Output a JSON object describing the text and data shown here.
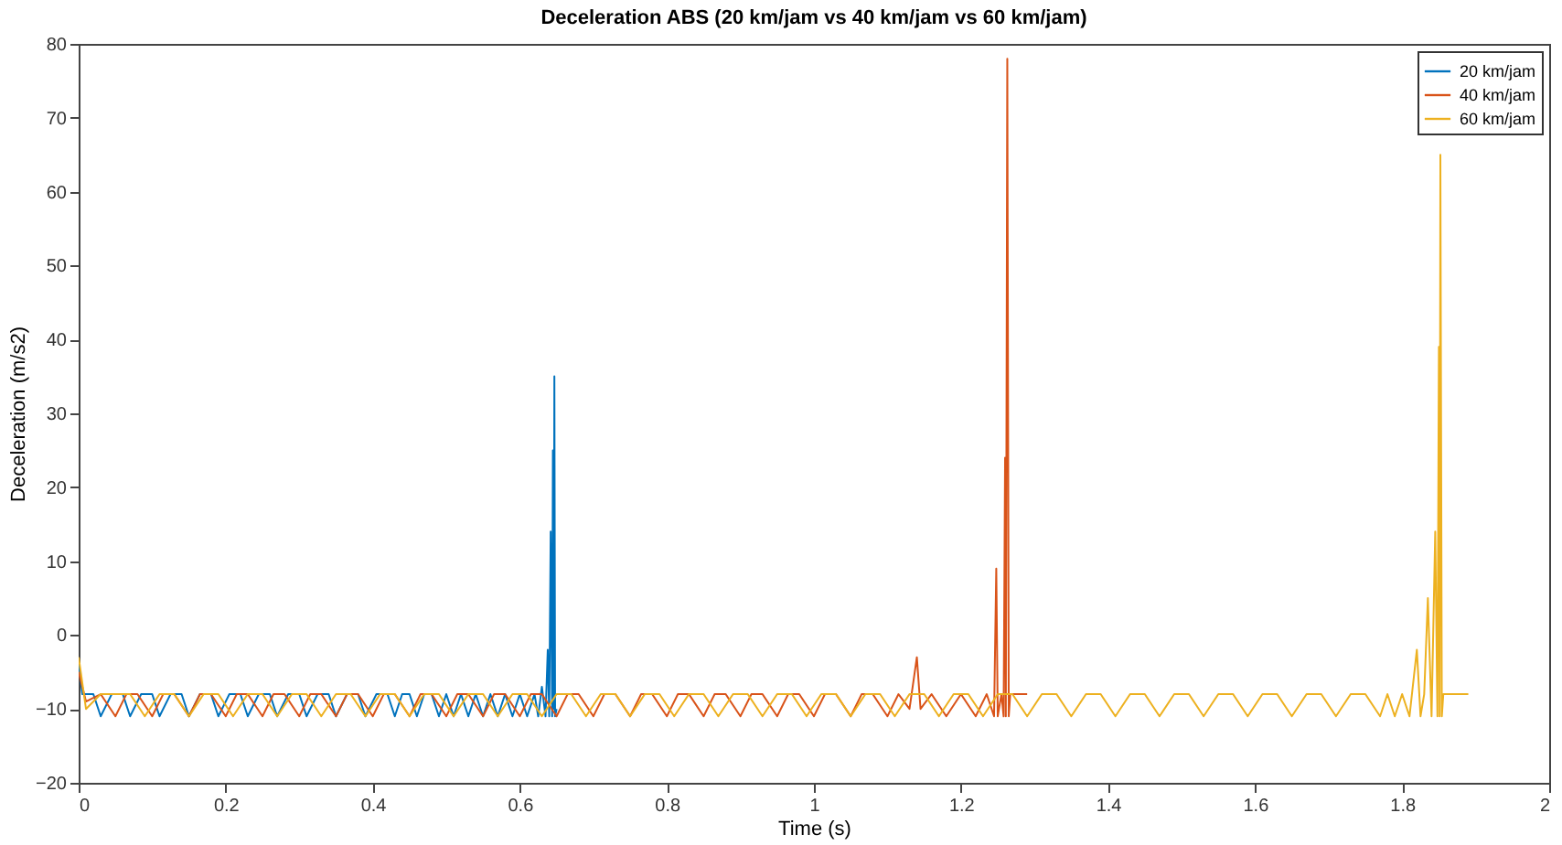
{
  "chart_data": {
    "type": "line",
    "title": "Deceleration ABS (20 km/jam vs 40 km/jam vs 60 km/jam)",
    "xlabel": "Time (s)",
    "ylabel": "Deceleration (m/s2)",
    "xlim": [
      0,
      2
    ],
    "xticks": [
      0,
      0.2,
      0.4,
      0.6,
      0.8,
      1,
      1.2,
      1.4,
      1.6,
      1.8,
      2
    ],
    "ylim": [
      -20,
      80
    ],
    "yticks": [
      -20,
      -10,
      0,
      10,
      20,
      30,
      40,
      50,
      60,
      70,
      80
    ],
    "grid": false,
    "legend": "top right",
    "marker": "none",
    "line_style": "solid",
    "series": [
      {
        "name": "20 km/jam",
        "color": "#0072bd",
        "x": [
          0,
          0.005,
          0.02,
          0.03,
          0.045,
          0.06,
          0.07,
          0.085,
          0.1,
          0.11,
          0.125,
          0.14,
          0.15,
          0.165,
          0.18,
          0.19,
          0.205,
          0.22,
          0.23,
          0.245,
          0.26,
          0.27,
          0.285,
          0.3,
          0.31,
          0.325,
          0.34,
          0.35,
          0.365,
          0.38,
          0.39,
          0.405,
          0.42,
          0.43,
          0.44,
          0.45,
          0.46,
          0.47,
          0.48,
          0.49,
          0.5,
          0.51,
          0.52,
          0.53,
          0.54,
          0.55,
          0.56,
          0.57,
          0.58,
          0.59,
          0.6,
          0.61,
          0.62,
          0.625,
          0.63,
          0.635,
          0.638,
          0.64,
          0.642,
          0.644,
          0.645,
          0.646,
          0.647,
          0.648,
          0.65
        ],
        "values": [
          -4,
          -8,
          -8,
          -11,
          -8,
          -8,
          -11,
          -8,
          -8,
          -11,
          -8,
          -8,
          -11,
          -8,
          -8,
          -11,
          -8,
          -8,
          -11,
          -8,
          -8,
          -11,
          -8,
          -8,
          -11,
          -8,
          -8,
          -11,
          -8,
          -8,
          -11,
          -8,
          -8,
          -11,
          -8,
          -8,
          -11,
          -8,
          -8,
          -11,
          -8,
          -11,
          -8,
          -11,
          -8,
          -11,
          -8,
          -11,
          -8,
          -11,
          -8,
          -11,
          -8,
          -11,
          -7,
          -11,
          -2,
          -11,
          14,
          -11,
          25,
          -10,
          35,
          -11,
          -10
        ]
      },
      {
        "name": "40 km/jam",
        "color": "#d95319",
        "x": [
          0,
          0.01,
          0.03,
          0.05,
          0.065,
          0.08,
          0.1,
          0.115,
          0.13,
          0.15,
          0.165,
          0.18,
          0.2,
          0.215,
          0.23,
          0.25,
          0.265,
          0.28,
          0.3,
          0.315,
          0.33,
          0.35,
          0.365,
          0.38,
          0.4,
          0.415,
          0.43,
          0.45,
          0.465,
          0.48,
          0.5,
          0.515,
          0.53,
          0.55,
          0.565,
          0.58,
          0.6,
          0.615,
          0.63,
          0.65,
          0.665,
          0.68,
          0.7,
          0.715,
          0.73,
          0.75,
          0.765,
          0.78,
          0.8,
          0.815,
          0.83,
          0.85,
          0.865,
          0.88,
          0.9,
          0.915,
          0.93,
          0.95,
          0.965,
          0.98,
          1.0,
          1.015,
          1.03,
          1.05,
          1.065,
          1.08,
          1.1,
          1.115,
          1.13,
          1.14,
          1.145,
          1.16,
          1.18,
          1.2,
          1.22,
          1.235,
          1.245,
          1.248,
          1.25,
          1.255,
          1.258,
          1.26,
          1.261,
          1.263,
          1.265,
          1.267,
          1.29
        ],
        "values": [
          -5,
          -9,
          -8,
          -11,
          -8,
          -8,
          -11,
          -8,
          -8,
          -11,
          -8,
          -8,
          -11,
          -8,
          -8,
          -11,
          -8,
          -8,
          -11,
          -8,
          -8,
          -11,
          -8,
          -8,
          -11,
          -8,
          -8,
          -11,
          -8,
          -8,
          -11,
          -8,
          -8,
          -11,
          -8,
          -8,
          -11,
          -8,
          -8,
          -11,
          -8,
          -8,
          -11,
          -8,
          -8,
          -11,
          -8,
          -8,
          -11,
          -8,
          -8,
          -11,
          -8,
          -8,
          -11,
          -8,
          -8,
          -11,
          -8,
          -8,
          -11,
          -8,
          -8,
          -11,
          -8,
          -8,
          -11,
          -8,
          -10,
          -3,
          -10,
          -8,
          -11,
          -8,
          -11,
          -8,
          -11,
          9,
          -11,
          -8,
          -11,
          24,
          -11,
          78,
          -11,
          -8,
          -8
        ]
      },
      {
        "name": "60 km/jam",
        "color": "#edb120",
        "x": [
          0,
          0.01,
          0.03,
          0.05,
          0.07,
          0.09,
          0.11,
          0.13,
          0.15,
          0.17,
          0.19,
          0.21,
          0.23,
          0.25,
          0.27,
          0.29,
          0.31,
          0.33,
          0.35,
          0.37,
          0.39,
          0.41,
          0.43,
          0.45,
          0.47,
          0.49,
          0.51,
          0.53,
          0.55,
          0.57,
          0.59,
          0.61,
          0.63,
          0.65,
          0.67,
          0.69,
          0.71,
          0.73,
          0.75,
          0.77,
          0.79,
          0.81,
          0.83,
          0.85,
          0.87,
          0.89,
          0.91,
          0.93,
          0.95,
          0.97,
          0.99,
          1.01,
          1.03,
          1.05,
          1.07,
          1.09,
          1.11,
          1.13,
          1.15,
          1.17,
          1.19,
          1.21,
          1.23,
          1.25,
          1.27,
          1.29,
          1.31,
          1.33,
          1.35,
          1.37,
          1.39,
          1.41,
          1.43,
          1.45,
          1.47,
          1.49,
          1.51,
          1.53,
          1.55,
          1.57,
          1.59,
          1.61,
          1.63,
          1.65,
          1.67,
          1.69,
          1.71,
          1.73,
          1.75,
          1.77,
          1.78,
          1.79,
          1.8,
          1.81,
          1.82,
          1.825,
          1.83,
          1.835,
          1.84,
          1.845,
          1.848,
          1.85,
          1.851,
          1.852,
          1.854,
          1.856,
          1.89
        ],
        "values": [
          -3,
          -10,
          -8,
          -8,
          -8,
          -11,
          -8,
          -8,
          -11,
          -8,
          -8,
          -11,
          -8,
          -8,
          -11,
          -8,
          -8,
          -11,
          -8,
          -8,
          -11,
          -8,
          -8,
          -11,
          -8,
          -8,
          -11,
          -8,
          -8,
          -11,
          -8,
          -8,
          -11,
          -8,
          -8,
          -11,
          -8,
          -8,
          -11,
          -8,
          -8,
          -11,
          -8,
          -8,
          -11,
          -8,
          -8,
          -11,
          -8,
          -8,
          -11,
          -8,
          -8,
          -11,
          -8,
          -8,
          -11,
          -8,
          -8,
          -11,
          -8,
          -8,
          -11,
          -8,
          -8,
          -11,
          -8,
          -8,
          -11,
          -8,
          -8,
          -11,
          -8,
          -8,
          -11,
          -8,
          -8,
          -11,
          -8,
          -8,
          -11,
          -8,
          -8,
          -11,
          -8,
          -8,
          -11,
          -8,
          -8,
          -11,
          -8,
          -11,
          -8,
          -11,
          -2,
          -11,
          -8,
          5,
          -11,
          14,
          -11,
          39,
          -11,
          65,
          -11,
          -8,
          -8
        ]
      }
    ]
  }
}
